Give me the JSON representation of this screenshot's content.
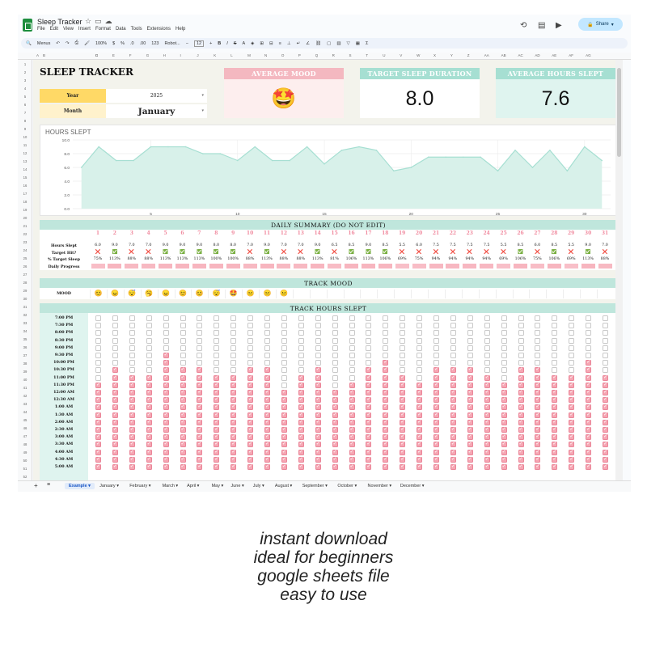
{
  "app": {
    "title": "Sleep Tracker",
    "menus": [
      "File",
      "Edit",
      "View",
      "Insert",
      "Format",
      "Data",
      "Tools",
      "Extensions",
      "Help"
    ],
    "share_label": "Share",
    "toolbar": {
      "search": "Menus",
      "zoom": "100%",
      "currency": "$",
      "percent": "%",
      "dec1": ".0",
      "dec2": ".00",
      "numfmt": "123",
      "font": "Robot...",
      "font_size": "12"
    },
    "columns": [
      "A",
      "B",
      "C",
      "D",
      "E",
      "F",
      "G",
      "H",
      "I",
      "J",
      "K",
      "L",
      "M",
      "N",
      "O",
      "P",
      "Q",
      "R",
      "S",
      "T",
      "U",
      "V",
      "W",
      "X",
      "Y",
      "Z",
      "AA",
      "AB",
      "AC",
      "AD",
      "AE",
      "AF",
      "AG"
    ],
    "rows": [
      "1",
      "2",
      "3",
      "4",
      "5",
      "6",
      "7",
      "8",
      "9",
      "10",
      "11",
      "12",
      "13",
      "14",
      "15",
      "16",
      "17",
      "18",
      "19",
      "20",
      "21",
      "22",
      "23",
      "24",
      "25",
      "26",
      "27",
      "28",
      "29",
      "30",
      "31",
      "32",
      "33",
      "34",
      "35",
      "36",
      "37",
      "38",
      "39",
      "40",
      "41",
      "42",
      "43",
      "44",
      "45",
      "46",
      "47",
      "48",
      "49",
      "50",
      "51",
      "52"
    ],
    "tabs": [
      "Example",
      "January",
      "February",
      "March",
      "April",
      "May",
      "June",
      "July",
      "August",
      "September",
      "October",
      "November",
      "December"
    ]
  },
  "sheet": {
    "heading": "SLEEP TRACKER",
    "year_label": "Year",
    "year_value": "2025",
    "month_label": "Month",
    "month_value": "January",
    "avg_mood_label": "AVERAGE MOOD",
    "avg_mood_value": "🤩",
    "target_label": "TARGET SLEEP DURATION",
    "target_value": "8.0",
    "avg_hours_label": "AVERAGE HOURS SLEPT",
    "avg_hours_value": "7.6",
    "colors": {
      "accent": "#a6dfd2",
      "yellow": "#ffd966",
      "pink": "#f4b8c0",
      "check_pink": "#f6a6b3"
    }
  },
  "chart_data": {
    "type": "area",
    "title": "HOURS SLEPT",
    "x": [
      1,
      2,
      3,
      4,
      5,
      6,
      7,
      8,
      9,
      10,
      11,
      12,
      13,
      14,
      15,
      16,
      17,
      18,
      19,
      20,
      21,
      22,
      23,
      24,
      25,
      26,
      27,
      28,
      29,
      30,
      31
    ],
    "y": [
      6.0,
      9.0,
      7.0,
      7.0,
      9.0,
      9.0,
      9.0,
      8.0,
      8.0,
      7.0,
      9.0,
      7.0,
      7.0,
      9.0,
      6.5,
      8.5,
      9.0,
      8.5,
      5.5,
      6.0,
      7.5,
      7.5,
      7.5,
      7.5,
      5.5,
      8.5,
      6.0,
      8.5,
      5.5,
      9.0,
      7.0
    ],
    "ylim": [
      0,
      10
    ],
    "yticks": [
      "10.0",
      "8.0",
      "6.0",
      "4.0",
      "2.0",
      "0.0"
    ],
    "xticks": [
      "5",
      "10",
      "15",
      "20",
      "25",
      "30"
    ],
    "grid": true,
    "color": "#a6dfd2"
  },
  "summary": {
    "title": "DAILY SUMMARY (DO NOT EDIT)",
    "row_labels": [
      "Hours Slept",
      "Target Hit?",
      "% Target Sleep",
      "Daily Progress"
    ],
    "days": [
      "1",
      "2",
      "3",
      "4",
      "5",
      "6",
      "7",
      "8",
      "9",
      "10",
      "11",
      "12",
      "13",
      "14",
      "15",
      "16",
      "17",
      "18",
      "19",
      "20",
      "21",
      "22",
      "23",
      "24",
      "25",
      "26",
      "27",
      "28",
      "29",
      "30",
      "31"
    ],
    "hours": [
      "6.0",
      "9.0",
      "7.0",
      "7.0",
      "9.0",
      "9.0",
      "9.0",
      "8.0",
      "8.0",
      "7.0",
      "9.0",
      "7.0",
      "7.0",
      "9.0",
      "6.5",
      "8.5",
      "9.0",
      "8.5",
      "5.5",
      "6.0",
      "7.5",
      "7.5",
      "7.5",
      "7.5",
      "5.5",
      "8.5",
      "6.0",
      "8.5",
      "5.5",
      "9.0",
      "7.0"
    ],
    "hit": [
      0,
      1,
      0,
      0,
      1,
      1,
      1,
      1,
      1,
      0,
      1,
      0,
      0,
      1,
      0,
      1,
      1,
      1,
      0,
      0,
      0,
      0,
      0,
      0,
      0,
      1,
      0,
      1,
      0,
      1,
      0
    ],
    "pct": [
      "75%",
      "113%",
      "88%",
      "88%",
      "113%",
      "113%",
      "113%",
      "100%",
      "100%",
      "88%",
      "113%",
      "88%",
      "88%",
      "113%",
      "81%",
      "106%",
      "113%",
      "106%",
      "69%",
      "75%",
      "94%",
      "94%",
      "94%",
      "94%",
      "69%",
      "106%",
      "75%",
      "106%",
      "69%",
      "113%",
      "88%"
    ],
    "progress": [
      0.75,
      1,
      0.88,
      0.88,
      1,
      1,
      1,
      1,
      1,
      0.88,
      1,
      0.88,
      0.88,
      1,
      0.81,
      1,
      1,
      1,
      0.69,
      0.75,
      0.94,
      0.94,
      0.94,
      0.94,
      0.69,
      1,
      0.75,
      1,
      0.69,
      1,
      0.88
    ]
  },
  "mood": {
    "title": "TRACK MOOD",
    "label": "MOOD",
    "values": [
      "😊",
      "😠",
      "😴",
      "🥱",
      "😠",
      "😊",
      "😊",
      "😴",
      "🤩",
      "😐",
      "😐",
      "😐"
    ]
  },
  "hours_track": {
    "title": "TRACK HOURS SLEPT",
    "times": [
      "7:00 PM",
      "7:30 PM",
      "8:00 PM",
      "8:30 PM",
      "9:00 PM",
      "9:30 PM",
      "10:00 PM",
      "10:30 PM",
      "11:00 PM",
      "11:30 PM",
      "12:00 AM",
      "12:30 AM",
      "1:00 AM",
      "1:30 AM",
      "2:00 AM",
      "2:30 AM",
      "3:00 AM",
      "3:30 AM",
      "4:00 AM",
      "4:30 AM",
      "5:00 AM"
    ],
    "starts": [
      9,
      7,
      8,
      8,
      5,
      7,
      7,
      8,
      8,
      7,
      7,
      10,
      8,
      7,
      10,
      9,
      7,
      6,
      8,
      9,
      7,
      7,
      7,
      8,
      9,
      7,
      7,
      8,
      8,
      6,
      8
    ]
  },
  "caption": [
    "instant download",
    "ideal for beginners",
    "google sheets file",
    "easy to use"
  ]
}
